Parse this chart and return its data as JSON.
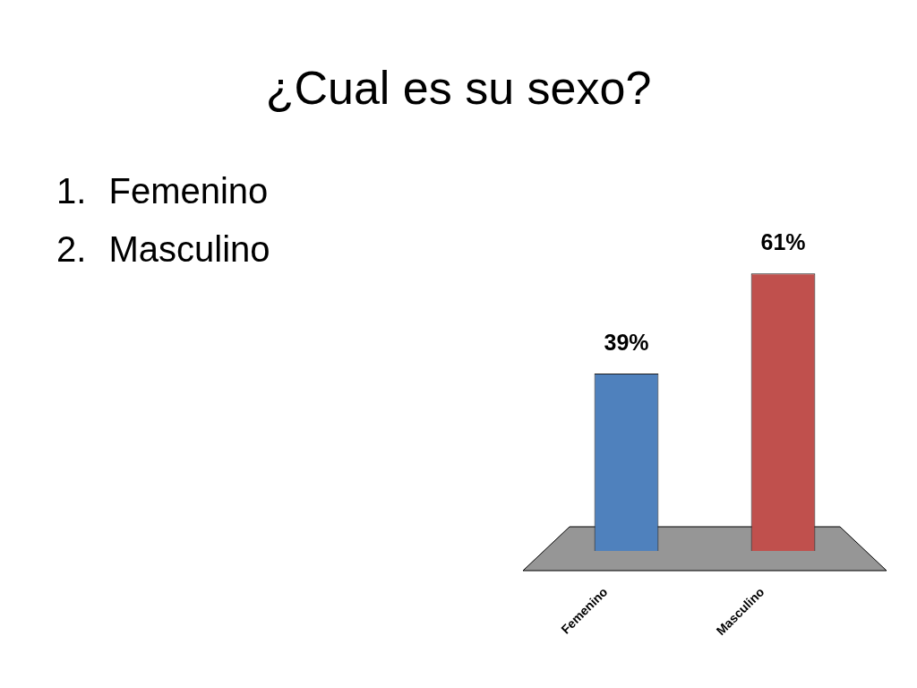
{
  "chart_data": {
    "type": "bar",
    "title": "¿Cual es su sexo?",
    "annotations": [
      "1. Femenino",
      "2. Masculino"
    ],
    "categories": [
      "Femenino",
      "Masculino"
    ],
    "values": [
      39,
      61
    ],
    "colors": [
      "#4f81bd",
      "#c0504d"
    ],
    "value_labels": [
      "39%",
      "61%"
    ]
  }
}
